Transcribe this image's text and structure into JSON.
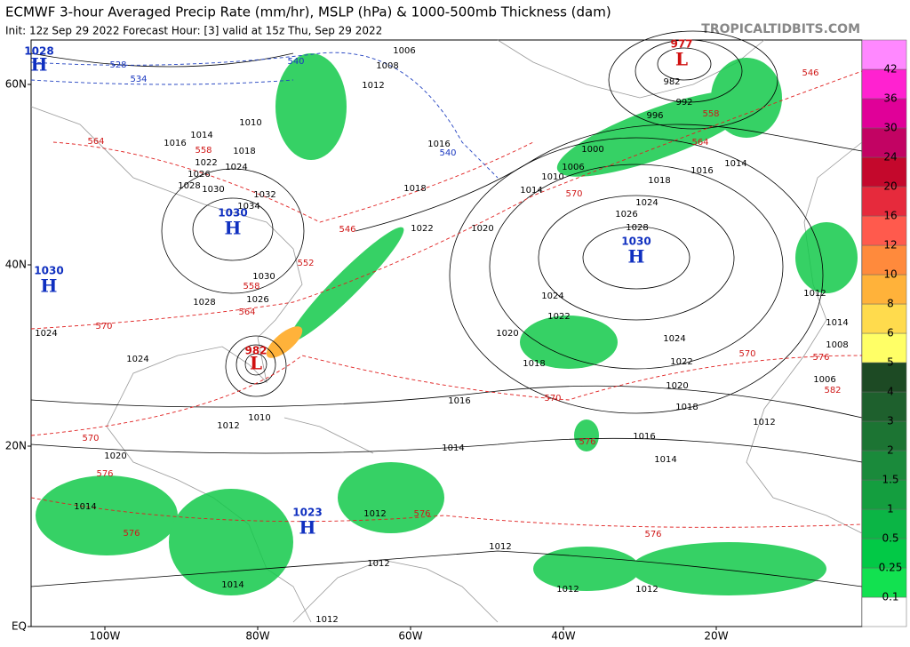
{
  "header": {
    "title": "ECMWF 3-hour Averaged Precip Rate (mm/hr), MSLP (hPa) & 1000-500mb Thickness (dam)",
    "subtitle": "Init: 12z Sep 29 2022   Forecast Hour: [3]   valid at 15z Thu, Sep 29 2022",
    "site": "TROPICALTIDBITS.COM"
  },
  "axes": {
    "lat_labels": [
      "60N",
      "40N",
      "20N",
      "EQ"
    ],
    "lon_labels": [
      "100W",
      "80W",
      "60W",
      "40W",
      "20W"
    ]
  },
  "colorbar": {
    "bounds": [
      0.1,
      0.25,
      0.5,
      1,
      1.5,
      2,
      3,
      4,
      5,
      6,
      8,
      10,
      12,
      16,
      20,
      24,
      30,
      36,
      42
    ],
    "colors": [
      "#ffffff",
      "#12e150",
      "#02c946",
      "#0bb545",
      "#149e3f",
      "#1a8a3b",
      "#1c7433",
      "#1e602d",
      "#1d4a24",
      "#ffff66",
      "#ffdb4d",
      "#ffb23a",
      "#ff8a3c",
      "#ff5a4d",
      "#e62a3c",
      "#c4082c",
      "#c20363",
      "#e00098",
      "#ff22d0",
      "#ff88ff"
    ]
  },
  "centers": [
    {
      "letter": "H",
      "value": 1028
    },
    {
      "letter": "H",
      "value": 1030
    },
    {
      "letter": "H",
      "value": 1030
    },
    {
      "letter": "H",
      "value": 1030
    },
    {
      "letter": "L",
      "value": 977
    },
    {
      "letter": "L",
      "value": 982
    },
    {
      "letter": "H",
      "value": 1023
    }
  ],
  "isobar_labels": [
    1006,
    1008,
    1012,
    1016,
    1018,
    1022,
    1020,
    1010,
    1014,
    1016,
    1018,
    1022,
    1024,
    1026,
    1028,
    1030,
    1032,
    1034,
    1030,
    1028,
    1026,
    1024,
    1024,
    1014,
    1020,
    1012,
    1010,
    1016,
    1014,
    1020,
    1018,
    1022,
    1024,
    1026,
    1028,
    1024,
    1024,
    1022,
    1020,
    1018,
    1016,
    1014,
    1016,
    1014,
    1018,
    992,
    996,
    1000,
    1006,
    1010,
    1014,
    982,
    1012,
    1006,
    1008,
    1014,
    1012,
    1012,
    1012,
    1012,
    1012,
    1012,
    1014,
    1012
  ],
  "thickness_labels": [
    546,
    552,
    558,
    564,
    570,
    558,
    564,
    546,
    558,
    564,
    570,
    570,
    576,
    582,
    570,
    576,
    576,
    576,
    570,
    576,
    576
  ],
  "cold_thickness_labels": [
    528,
    534,
    540,
    540
  ]
}
